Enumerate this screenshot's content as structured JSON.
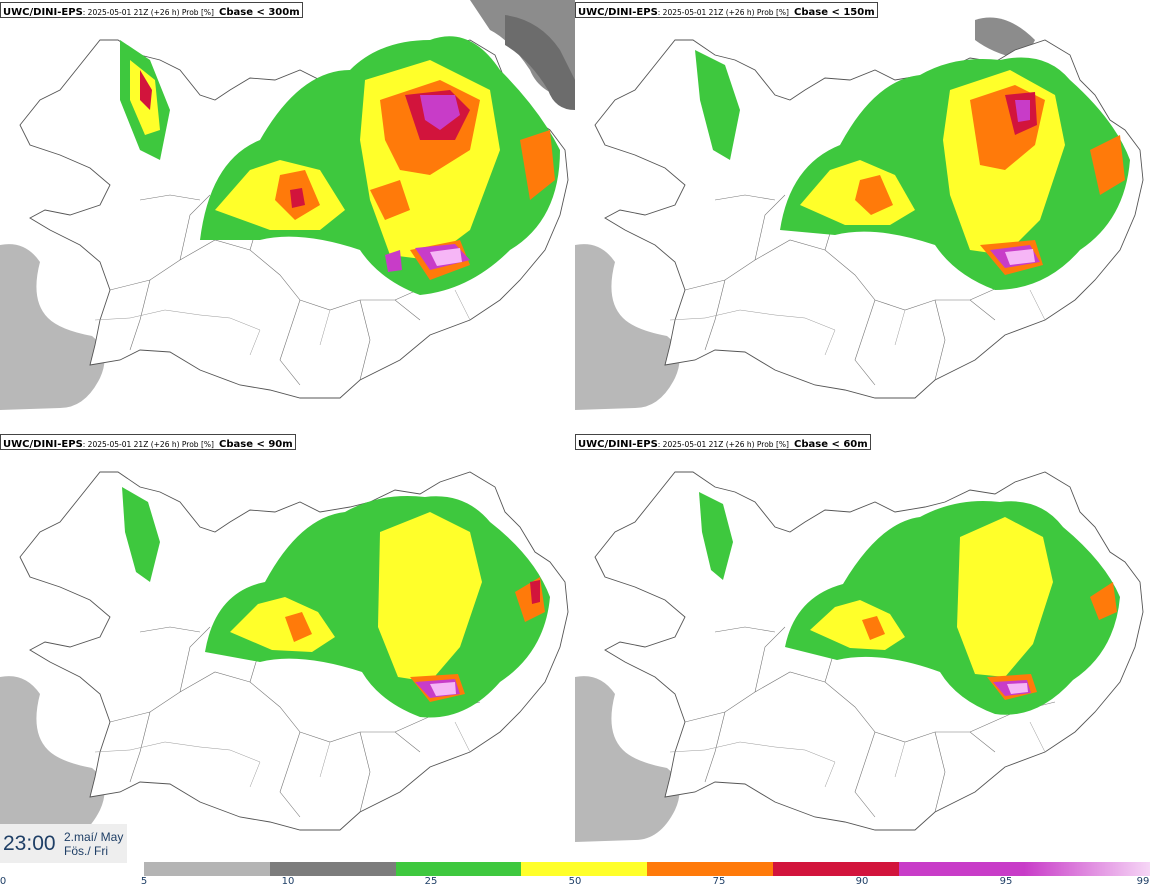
{
  "panels": [
    {
      "model": "UWC/DINI-EPS",
      "meta": ": 2025-05-01 21Z (+26 h) Prob [%]",
      "variable": "Cbase < 300m"
    },
    {
      "model": "UWC/DINI-EPS",
      "meta": ": 2025-05-01 21Z (+26 h) Prob [%]",
      "variable": "Cbase < 150m"
    },
    {
      "model": "UWC/DINI-EPS",
      "meta": ": 2025-05-01 21Z (+26 h) Prob [%]",
      "variable": "Cbase < 90m"
    },
    {
      "model": "UWC/DINI-EPS",
      "meta": ": 2025-05-01 21Z (+26 h) Prob [%]",
      "variable": "Cbase < 60m"
    }
  ],
  "time": {
    "clock": "23:00",
    "date_line1": "2.maí/ May",
    "date_line2": "Fös./ Fri"
  },
  "colorbar": {
    "labels": [
      "0",
      "5",
      "10",
      "25",
      "50",
      "75",
      "90",
      "95",
      "99"
    ],
    "colors": [
      "#b4b4b4",
      "#7c7c7c",
      "#3ec83e",
      "#ffff2a",
      "#ff7a0a",
      "#d2143c",
      "#c83cc8",
      "#f6b6f6"
    ]
  }
}
